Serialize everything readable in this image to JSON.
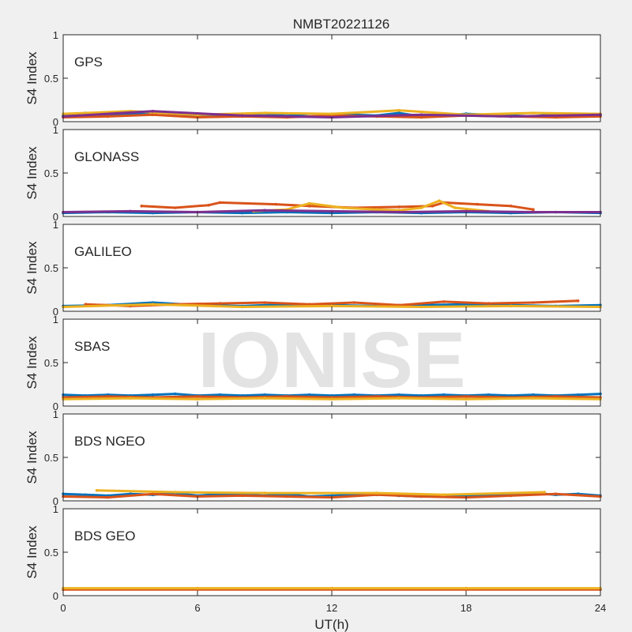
{
  "chart_data": {
    "type": "line",
    "title": "NMBT20221126",
    "watermark": "IONISE",
    "xlabel": "UT(h)",
    "ylabel": "S4 Index",
    "xlim": [
      0,
      24
    ],
    "ylim": [
      0,
      1
    ],
    "x_ticks": [
      "0",
      "6",
      "12",
      "18",
      "24"
    ],
    "y_ticks": [
      "0",
      "0.5",
      "1"
    ],
    "grid": false,
    "colors": [
      "#0072bd",
      "#d95319",
      "#edb120",
      "#7e2f8e",
      "#77ac30",
      "#4dbeee",
      "#a2142f"
    ],
    "panels": [
      {
        "label": "GPS",
        "series": [
          {
            "x": [
              0,
              1,
              2,
              3,
              4,
              5,
              6,
              7,
              8,
              9,
              10,
              11,
              12,
              13,
              14,
              15,
              16,
              17,
              18,
              19,
              20,
              21,
              22,
              23,
              24
            ],
            "y": [
              0.07,
              0.1,
              0.07,
              0.08,
              0.11,
              0.09,
              0.07,
              0.06,
              0.08,
              0.07,
              0.09,
              0.06,
              0.07,
              0.08,
              0.07,
              0.1,
              0.06,
              0.07,
              0.09,
              0.08,
              0.07,
              0.06,
              0.09,
              0.08,
              0.07
            ]
          },
          {
            "x": [
              0,
              2,
              4,
              6,
              8,
              10,
              12,
              14,
              16,
              18,
              20,
              22,
              24
            ],
            "y": [
              0.05,
              0.06,
              0.08,
              0.05,
              0.06,
              0.05,
              0.07,
              0.06,
              0.05,
              0.07,
              0.06,
              0.05,
              0.06
            ]
          },
          {
            "x": [
              0,
              3,
              6,
              9,
              12,
              15,
              18,
              21,
              24
            ],
            "y": [
              0.09,
              0.12,
              0.08,
              0.1,
              0.09,
              0.13,
              0.08,
              0.1,
              0.09
            ]
          },
          {
            "x": [
              0,
              4,
              8,
              12,
              16,
              20,
              24
            ],
            "y": [
              0.06,
              0.12,
              0.07,
              0.05,
              0.08,
              0.06,
              0.08
            ]
          }
        ]
      },
      {
        "label": "GLONASS",
        "series": [
          {
            "x": [
              0,
              2,
              4,
              6,
              8,
              10,
              12,
              14,
              16,
              18,
              20,
              22,
              24
            ],
            "y": [
              0.04,
              0.05,
              0.04,
              0.05,
              0.04,
              0.05,
              0.04,
              0.05,
              0.04,
              0.05,
              0.04,
              0.05,
              0.04
            ]
          },
          {
            "x": [
              3.5,
              5,
              6.5,
              7,
              9.5,
              11,
              13,
              15,
              16.5,
              17,
              18.5,
              20,
              21
            ],
            "y": [
              0.12,
              0.1,
              0.13,
              0.16,
              0.14,
              0.12,
              0.1,
              0.11,
              0.12,
              0.16,
              0.14,
              0.12,
              0.08
            ]
          },
          {
            "x": [
              8.5,
              10,
              11,
              12.5,
              14,
              15,
              16,
              16.8,
              17.5,
              19
            ],
            "y": [
              0.06,
              0.08,
              0.15,
              0.1,
              0.08,
              0.07,
              0.1,
              0.18,
              0.1,
              0.06
            ]
          },
          {
            "x": [
              0,
              3,
              6,
              9,
              12,
              15,
              18,
              21,
              24
            ],
            "y": [
              0.05,
              0.06,
              0.05,
              0.07,
              0.06,
              0.05,
              0.06,
              0.05,
              0.05
            ]
          }
        ]
      },
      {
        "label": "GALILEO",
        "series": [
          {
            "x": [
              0,
              2,
              4,
              6,
              8,
              10,
              12,
              14,
              16,
              18,
              20,
              22,
              24
            ],
            "y": [
              0.06,
              0.07,
              0.1,
              0.07,
              0.06,
              0.08,
              0.07,
              0.06,
              0.07,
              0.08,
              0.07,
              0.06,
              0.07
            ]
          },
          {
            "x": [
              1,
              3,
              5,
              7,
              9,
              11,
              13,
              15,
              17,
              19,
              21,
              23
            ],
            "y": [
              0.08,
              0.06,
              0.08,
              0.09,
              0.1,
              0.08,
              0.1,
              0.07,
              0.11,
              0.09,
              0.1,
              0.12
            ]
          },
          {
            "x": [
              0,
              4,
              8,
              12,
              16,
              20,
              24
            ],
            "y": [
              0.05,
              0.08,
              0.05,
              0.06,
              0.05,
              0.06,
              0.05
            ]
          }
        ]
      },
      {
        "label": "SBAS",
        "series": [
          {
            "x": [
              0,
              1,
              2,
              3,
              4,
              5,
              6,
              7,
              8,
              9,
              10,
              11,
              12,
              13,
              14,
              15,
              16,
              17,
              18,
              19,
              20,
              21,
              22,
              23,
              24
            ],
            "y": [
              0.13,
              0.12,
              0.13,
              0.12,
              0.13,
              0.14,
              0.12,
              0.13,
              0.12,
              0.13,
              0.12,
              0.13,
              0.12,
              0.13,
              0.12,
              0.13,
              0.12,
              0.13,
              0.12,
              0.13,
              0.12,
              0.13,
              0.12,
              0.13,
              0.14
            ]
          },
          {
            "x": [
              0,
              2,
              4,
              6,
              8,
              10,
              12,
              14,
              16,
              18,
              20,
              22,
              24
            ],
            "y": [
              0.1,
              0.11,
              0.1,
              0.11,
              0.1,
              0.11,
              0.1,
              0.11,
              0.1,
              0.11,
              0.1,
              0.11,
              0.1
            ]
          },
          {
            "x": [
              0,
              3,
              6,
              9,
              12,
              15,
              18,
              21,
              24
            ],
            "y": [
              0.08,
              0.09,
              0.08,
              0.09,
              0.08,
              0.09,
              0.08,
              0.09,
              0.08
            ]
          }
        ]
      },
      {
        "label": "BDS NGEO",
        "series": [
          {
            "x": [
              0,
              1,
              2,
              3,
              4,
              5,
              6,
              7,
              8,
              9,
              10,
              11,
              12,
              13,
              14,
              15,
              16,
              17,
              18,
              19,
              20,
              21,
              22,
              23,
              24
            ],
            "y": [
              0.08,
              0.07,
              0.06,
              0.08,
              0.07,
              0.09,
              0.06,
              0.08,
              0.07,
              0.06,
              0.08,
              0.05,
              0.06,
              0.07,
              0.08,
              0.06,
              0.05,
              0.06,
              0.05,
              0.07,
              0.08,
              0.09,
              0.07,
              0.08,
              0.06
            ]
          },
          {
            "x": [
              0,
              2,
              4,
              6,
              8,
              10,
              12,
              14,
              16,
              18,
              20,
              22,
              24
            ],
            "y": [
              0.05,
              0.04,
              0.08,
              0.05,
              0.06,
              0.05,
              0.04,
              0.07,
              0.05,
              0.04,
              0.06,
              0.08,
              0.05
            ]
          },
          {
            "x": [
              1.5,
              5,
              9,
              14,
              17,
              21.5
            ],
            "y": [
              0.12,
              0.1,
              0.09,
              0.09,
              0.07,
              0.1
            ]
          }
        ]
      },
      {
        "label": "BDS GEO",
        "series": [
          {
            "x": [
              0,
              6,
              12,
              18,
              24
            ],
            "y": [
              0.08,
              0.08,
              0.08,
              0.08,
              0.08
            ]
          },
          {
            "x": [
              0,
              6,
              12,
              18,
              24
            ],
            "y": [
              0.07,
              0.07,
              0.07,
              0.07,
              0.07
            ]
          },
          {
            "x": [
              0,
              6,
              12,
              18,
              24
            ],
            "y": [
              0.085,
              0.085,
              0.085,
              0.085,
              0.085
            ]
          }
        ]
      }
    ]
  }
}
